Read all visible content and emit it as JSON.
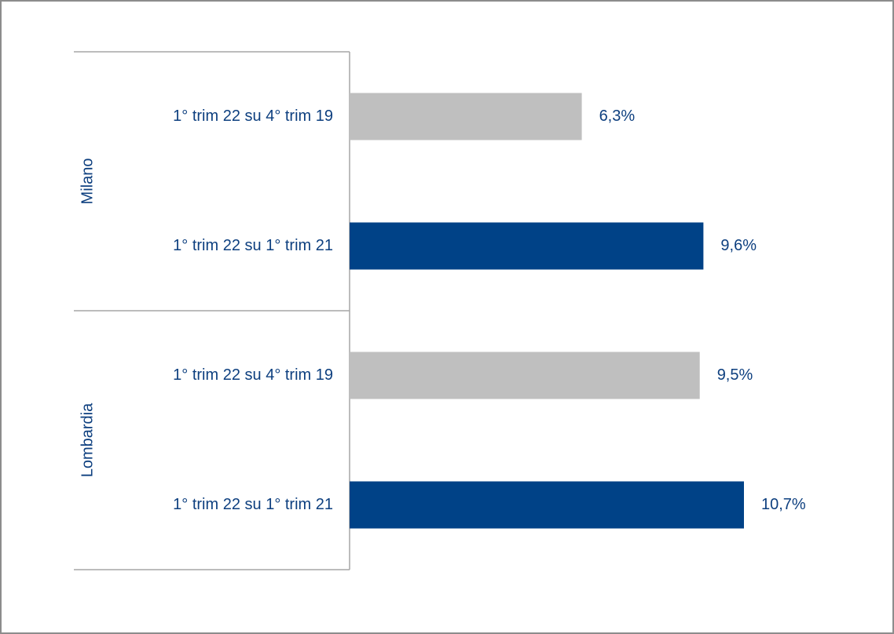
{
  "chart_data": {
    "type": "hbar",
    "groups": [
      "Milano",
      "Lombardia"
    ],
    "categories": [
      "1° trim 22 su 4° trim 19",
      "1° trim 22 su 1° trim 21",
      "1° trim 22 su 4° trim 19",
      "1° trim 22 su 1° trim 21"
    ],
    "values": [
      6.3,
      9.6,
      9.5,
      10.7
    ],
    "value_labels": [
      "6,3%",
      "9,6%",
      "9,5%",
      "10,7%"
    ],
    "colors": [
      "#bfbfbf",
      "#004287",
      "#bfbfbf",
      "#004287"
    ]
  }
}
